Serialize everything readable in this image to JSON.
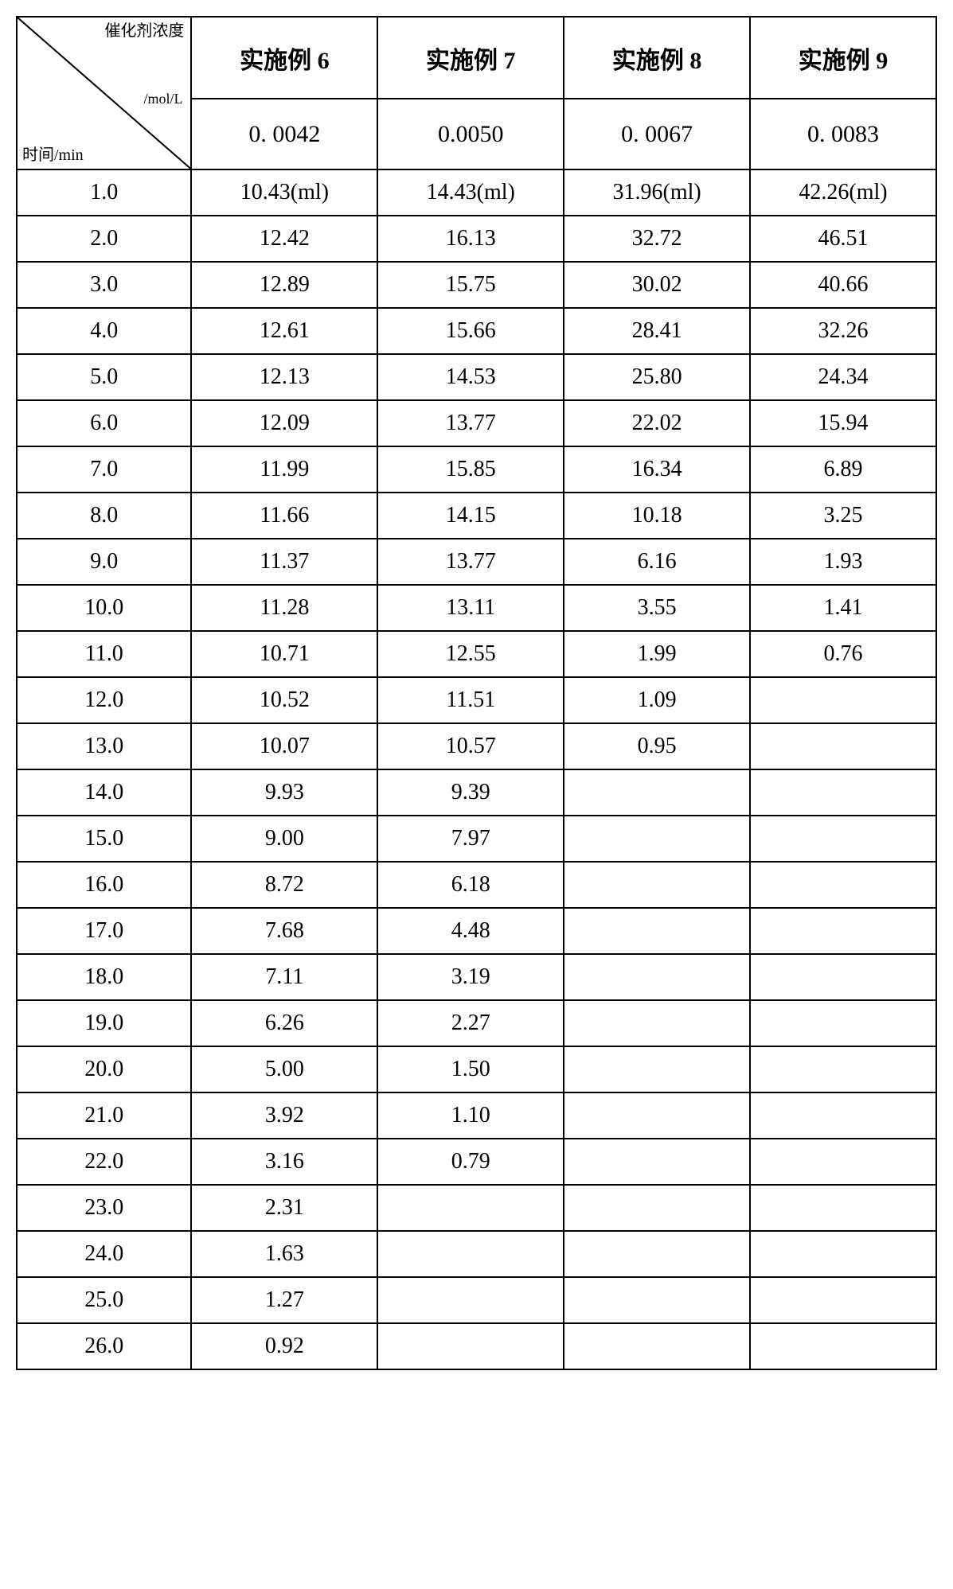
{
  "table": {
    "type": "table",
    "border_color": "#000000",
    "background_color": "#ffffff",
    "header_diagonal": {
      "top_label": "催化剂浓度",
      "mid_label": "/mol/L",
      "bottom_label": "时间/min"
    },
    "columns": [
      "实施例 6",
      "实施例 7",
      "实施例 8",
      "实施例 9"
    ],
    "concentrations": [
      "0. 0042",
      "0.0050",
      "0. 0067",
      "0. 0083"
    ],
    "rows": [
      {
        "time": "1.0",
        "c1": "10.43(ml)",
        "c2": "14.43(ml)",
        "c3": "31.96(ml)",
        "c4": "42.26(ml)"
      },
      {
        "time": "2.0",
        "c1": "12.42",
        "c2": "16.13",
        "c3": "32.72",
        "c4": "46.51"
      },
      {
        "time": "3.0",
        "c1": "12.89",
        "c2": "15.75",
        "c3": "30.02",
        "c4": "40.66"
      },
      {
        "time": "4.0",
        "c1": "12.61",
        "c2": "15.66",
        "c3": "28.41",
        "c4": "32.26"
      },
      {
        "time": "5.0",
        "c1": "12.13",
        "c2": "14.53",
        "c3": "25.80",
        "c4": "24.34"
      },
      {
        "time": "6.0",
        "c1": "12.09",
        "c2": "13.77",
        "c3": "22.02",
        "c4": "15.94"
      },
      {
        "time": "7.0",
        "c1": "11.99",
        "c2": "15.85",
        "c3": "16.34",
        "c4": "6.89"
      },
      {
        "time": "8.0",
        "c1": "11.66",
        "c2": "14.15",
        "c3": "10.18",
        "c4": "3.25"
      },
      {
        "time": "9.0",
        "c1": "11.37",
        "c2": "13.77",
        "c3": "6.16",
        "c4": "1.93"
      },
      {
        "time": "10.0",
        "c1": "11.28",
        "c2": "13.11",
        "c3": "3.55",
        "c4": "1.41"
      },
      {
        "time": "11.0",
        "c1": "10.71",
        "c2": "12.55",
        "c3": "1.99",
        "c4": "0.76"
      },
      {
        "time": "12.0",
        "c1": "10.52",
        "c2": "11.51",
        "c3": "1.09",
        "c4": ""
      },
      {
        "time": "13.0",
        "c1": "10.07",
        "c2": "10.57",
        "c3": "0.95",
        "c4": ""
      },
      {
        "time": "14.0",
        "c1": "9.93",
        "c2": "9.39",
        "c3": "",
        "c4": ""
      },
      {
        "time": "15.0",
        "c1": "9.00",
        "c2": "7.97",
        "c3": "",
        "c4": ""
      },
      {
        "time": "16.0",
        "c1": "8.72",
        "c2": "6.18",
        "c3": "",
        "c4": ""
      },
      {
        "time": "17.0",
        "c1": "7.68",
        "c2": "4.48",
        "c3": "",
        "c4": ""
      },
      {
        "time": "18.0",
        "c1": "7.11",
        "c2": "3.19",
        "c3": "",
        "c4": ""
      },
      {
        "time": "19.0",
        "c1": "6.26",
        "c2": "2.27",
        "c3": "",
        "c4": ""
      },
      {
        "time": "20.0",
        "c1": "5.00",
        "c2": "1.50",
        "c3": "",
        "c4": ""
      },
      {
        "time": "21.0",
        "c1": "3.92",
        "c2": "1.10",
        "c3": "",
        "c4": ""
      },
      {
        "time": "22.0",
        "c1": "3.16",
        "c2": "0.79",
        "c3": "",
        "c4": ""
      },
      {
        "time": "23.0",
        "c1": "2.31",
        "c2": "",
        "c3": "",
        "c4": ""
      },
      {
        "time": "24.0",
        "c1": "1.63",
        "c2": "",
        "c3": "",
        "c4": ""
      },
      {
        "time": "25.0",
        "c1": "1.27",
        "c2": "",
        "c3": "",
        "c4": ""
      },
      {
        "time": "26.0",
        "c1": "0.92",
        "c2": "",
        "c3": "",
        "c4": ""
      }
    ],
    "col_widths_pct": [
      19,
      20.25,
      20.25,
      20.25,
      20.25
    ],
    "font_size_body": 28,
    "font_size_header": 30
  }
}
